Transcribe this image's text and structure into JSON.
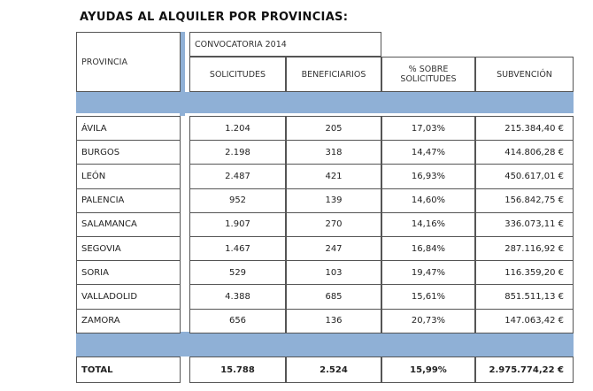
{
  "title": "AYUDAS AL ALQUILER POR PROVINCIAS:",
  "header": {
    "provincia": "PROVINCIA",
    "convocatoria": "CONVOCATORIA 2014",
    "solicitudes": "SOLICITUDES",
    "beneficiarios": "BENEFICIARIOS",
    "pct_line1": "% SOBRE",
    "pct_line2": "SOLICITUDES",
    "subvencion": "SUBVENCIÓN"
  },
  "rows": [
    {
      "provincia": "ÁVILA",
      "solicitudes": "1.204",
      "beneficiarios": "205",
      "pct": "17,03%",
      "subvencion": "215.384,40 €"
    },
    {
      "provincia": "BURGOS",
      "solicitudes": "2.198",
      "beneficiarios": "318",
      "pct": "14,47%",
      "subvencion": "414.806,28 €"
    },
    {
      "provincia": "LEÓN",
      "solicitudes": "2.487",
      "beneficiarios": "421",
      "pct": "16,93%",
      "subvencion": "450.617,01 €"
    },
    {
      "provincia": "PALENCIA",
      "solicitudes": "952",
      "beneficiarios": "139",
      "pct": "14,60%",
      "subvencion": "156.842,75 €"
    },
    {
      "provincia": "SALAMANCA",
      "solicitudes": "1.907",
      "beneficiarios": "270",
      "pct": "14,16%",
      "subvencion": "336.073,11 €"
    },
    {
      "provincia": "SEGOVIA",
      "solicitudes": "1.467",
      "beneficiarios": "247",
      "pct": "16,84%",
      "subvencion": "287.116,92 €"
    },
    {
      "provincia": "SORIA",
      "solicitudes": "529",
      "beneficiarios": "103",
      "pct": "19,47%",
      "subvencion": "116.359,20 €"
    },
    {
      "provincia": "VALLADOLID",
      "solicitudes": "4.388",
      "beneficiarios": "685",
      "pct": "15,61%",
      "subvencion": "851.511,13 €"
    },
    {
      "provincia": "ZAMORA",
      "solicitudes": "656",
      "beneficiarios": "136",
      "pct": "20,73%",
      "subvencion": "147.063,42 €"
    }
  ],
  "total": {
    "provincia": "TOTAL",
    "solicitudes": "15.788",
    "beneficiarios": "2.524",
    "pct": "15,99%",
    "subvencion": "2.975.774,22 €"
  }
}
